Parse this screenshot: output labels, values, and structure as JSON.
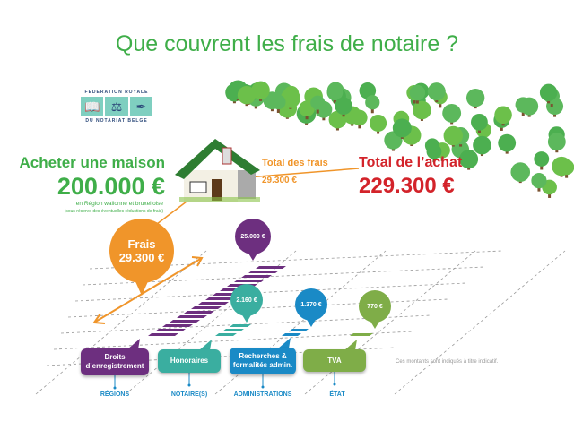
{
  "title": "Que couvrent les frais de notaire ?",
  "logo": {
    "top": "FEDERATION ROYALE",
    "bottom": "DU NOTARIAT BELGE"
  },
  "purchase": {
    "heading": "Acheter une maison",
    "price": "200.000 €",
    "note1": "en Région wallonne et bruxelloise",
    "note2": "(sous réserve des éventuelles réductions de frais)"
  },
  "total_fees": {
    "label": "Total des frais",
    "value": "29.300 €"
  },
  "total_purchase": {
    "label": "Total de l’achat",
    "value": "229.300 €"
  },
  "fees_bubble": {
    "label": "Frais",
    "value": "29.300 €"
  },
  "items": [
    {
      "amount": "25.000 €",
      "label": "Droits d’enregistrement",
      "recipient": "RÉGIONS",
      "color": "#6d2f7f"
    },
    {
      "amount": "2.160 €",
      "label": "Honoraires",
      "recipient": "NOTAIRE(S)",
      "color": "#3aaea0"
    },
    {
      "amount": "1.370 €",
      "label": "Recherches & formalités admin.",
      "recipient": "ADMINISTRATIONS",
      "color": "#1a8ac6"
    },
    {
      "amount": "770 €",
      "label": "TVA",
      "recipient": "ÉTAT",
      "color": "#7fad48"
    }
  ],
  "disclaimer": "Ces montants sont indiqués à titre indicatif.",
  "colors": {
    "green": "#3fae49",
    "orange": "#f0952a",
    "red": "#d3232a"
  }
}
